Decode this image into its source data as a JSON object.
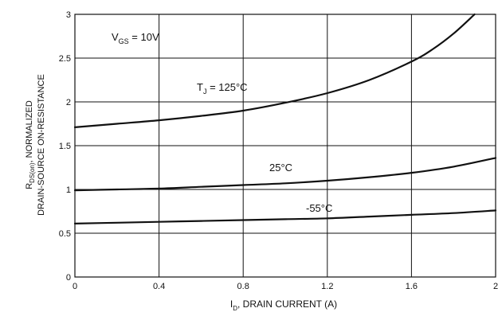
{
  "chart_data": {
    "type": "line",
    "xlabel_main": "I",
    "xlabel_sub": "D",
    "xlabel_rest": ", DRAIN CURRENT (A)",
    "ylabel_line1_main": "R",
    "ylabel_line1_sub": "DS(on)",
    "ylabel_line1_rest": ", NORMALIZED",
    "ylabel_line2": "DRAIN-SOURCE ON-RESISTANCE",
    "xlim": [
      0,
      2
    ],
    "ylim": [
      0,
      3
    ],
    "x_ticks": [
      0,
      0.4,
      0.8,
      1.2,
      1.6,
      2
    ],
    "x_tick_labels": [
      "0",
      "0.4",
      "0.8",
      "1.2",
      "1.6",
      "2"
    ],
    "y_ticks": [
      0,
      0.5,
      1,
      1.5,
      2,
      2.5,
      3
    ],
    "y_tick_labels": [
      "0",
      "0.5",
      "1",
      "1.5",
      "2",
      "2.5",
      "3"
    ],
    "grid": true,
    "condition_main": "V",
    "condition_sub": "GS",
    "condition_rest": " = 10V",
    "series": [
      {
        "label_main": "T",
        "label_sub": "J",
        "label_rest": " = 125°C",
        "x": [
          0,
          0.2,
          0.4,
          0.6,
          0.8,
          1.0,
          1.2,
          1.4,
          1.6,
          1.7,
          1.8,
          1.9
        ],
        "y": [
          1.71,
          1.75,
          1.79,
          1.84,
          1.9,
          1.99,
          2.1,
          2.25,
          2.46,
          2.6,
          2.78,
          3.0
        ]
      },
      {
        "label_main": "25°C",
        "label_sub": "",
        "label_rest": "",
        "x": [
          0,
          0.2,
          0.4,
          0.6,
          0.8,
          1.0,
          1.2,
          1.4,
          1.6,
          1.8,
          2.0
        ],
        "y": [
          0.99,
          1.0,
          1.01,
          1.03,
          1.05,
          1.07,
          1.1,
          1.14,
          1.19,
          1.26,
          1.36
        ]
      },
      {
        "label_main": "-55°C",
        "label_sub": "",
        "label_rest": "",
        "x": [
          0,
          0.2,
          0.4,
          0.6,
          0.8,
          1.0,
          1.2,
          1.4,
          1.6,
          1.8,
          2.0
        ],
        "y": [
          0.61,
          0.62,
          0.63,
          0.64,
          0.65,
          0.66,
          0.67,
          0.69,
          0.71,
          0.73,
          0.76
        ]
      }
    ],
    "line_color": "#111111",
    "grid_color": "#111111"
  }
}
